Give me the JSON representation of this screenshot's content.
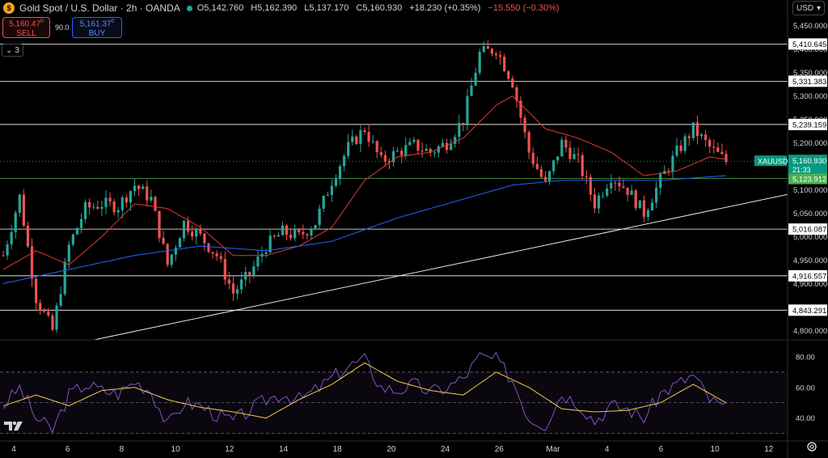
{
  "header": {
    "title": "Gold Spot / U.S. Dollar · 2h · OANDA",
    "open": "O5,142.760",
    "high": "H5,162.390",
    "low": "L5,137.170",
    "close": "C5,160.930",
    "change": "+18.230 (+0.35%)",
    "change2": "−15.550 (−0.30%)"
  },
  "trade": {
    "sell_price": "5,160.47",
    "sell_sup": "0",
    "sell_label": "SELL",
    "buy_price": "5,161.37",
    "buy_sup": "0",
    "buy_label": "BUY",
    "spread": "90.0"
  },
  "indicators_toggle": "3",
  "currency": "USD",
  "colors": {
    "up": "#26a69a",
    "down": "#ef5350",
    "ma_fast": "#e53935",
    "ma_slow": "#2962ff",
    "rsi": "#7e57c2",
    "rsi_ma": "#f7c948",
    "level": "#ffffff",
    "trend": "#ffffff",
    "last_price_bg": "#089981",
    "support_line": "#4caf50"
  },
  "chart_data": {
    "type": "candlestick",
    "symbol_label": "XAUUSD",
    "last_price": "5,160.930",
    "countdown": "21:33",
    "support_level_label": "5,123.912",
    "price_axis": {
      "range": [
        4780,
        5470
      ],
      "ticks": [
        "5,450.000",
        "5,400.000",
        "5,350.000",
        "5,300.000",
        "5,250.000",
        "5,200.000",
        "5,150.000",
        "5,100.000",
        "5,050.000",
        "5,000.000",
        "4,950.000",
        "4,900.000",
        "4,850.000",
        "4,800.000"
      ]
    },
    "levels": [
      {
        "value": 5410.645,
        "label": "5,410.645"
      },
      {
        "value": 5331.383,
        "label": "5,331.383"
      },
      {
        "value": 5239.159,
        "label": "5,239.159"
      },
      {
        "value": 5016.087,
        "label": "5,016.087"
      },
      {
        "value": 4916.557,
        "label": "4,916.557"
      },
      {
        "value": 4843.291,
        "label": "4,843.291"
      }
    ],
    "support_line": 5123.912,
    "trendline": {
      "from": [
        2.6,
        4780
      ],
      "to": [
        14.3,
        5090
      ]
    },
    "x_axis": {
      "range": [
        3.55,
        14.6
      ],
      "ticks": [
        {
          "pos": 4,
          "label": "4"
        },
        {
          "pos": 6,
          "label": "6"
        },
        {
          "pos": 8,
          "label": "8"
        },
        {
          "pos": 10,
          "label": "10"
        },
        {
          "pos": 12,
          "label": "12"
        },
        {
          "pos": 14,
          "label": "14"
        },
        {
          "pos": 16,
          "label": "18"
        },
        {
          "pos": 18,
          "label": "20"
        },
        {
          "pos": 20,
          "label": "24"
        },
        {
          "pos": 22,
          "label": "26"
        },
        {
          "pos": 24,
          "label": "Mar"
        },
        {
          "pos": 26,
          "label": "4"
        },
        {
          "pos": 28,
          "label": "6"
        },
        {
          "pos": 30,
          "label": "10"
        },
        {
          "pos": 32,
          "label": "12"
        },
        {
          "pos": 34,
          "label": "14"
        }
      ]
    },
    "price_path": [
      [
        0,
        4960
      ],
      [
        2,
        5085
      ],
      [
        4,
        4870
      ],
      [
        6,
        4800
      ],
      [
        8,
        4980
      ],
      [
        10,
        5060
      ],
      [
        12,
        5070
      ],
      [
        14,
        5065
      ],
      [
        16,
        5110
      ],
      [
        18,
        5080
      ],
      [
        20,
        4940
      ],
      [
        22,
        5030
      ],
      [
        24,
        5000
      ],
      [
        26,
        4960
      ],
      [
        28,
        4880
      ],
      [
        30,
        4920
      ],
      [
        32,
        4980
      ],
      [
        34,
        5010
      ],
      [
        36,
        5000
      ],
      [
        38,
        5030
      ],
      [
        40,
        5120
      ],
      [
        42,
        5190
      ],
      [
        44,
        5230
      ],
      [
        46,
        5160
      ],
      [
        48,
        5180
      ],
      [
        50,
        5195
      ],
      [
        52,
        5180
      ],
      [
        54,
        5200
      ],
      [
        56,
        5250
      ],
      [
        58,
        5390
      ],
      [
        60,
        5400
      ],
      [
        62,
        5330
      ],
      [
        64,
        5180
      ],
      [
        66,
        5110
      ],
      [
        68,
        5200
      ],
      [
        70,
        5160
      ],
      [
        72,
        5070
      ],
      [
        74,
        5130
      ],
      [
        76,
        5100
      ],
      [
        78,
        5050
      ],
      [
        80,
        5120
      ],
      [
        82,
        5180
      ],
      [
        84,
        5230
      ],
      [
        86,
        5190
      ],
      [
        88,
        5160
      ]
    ],
    "ma_fast_path": [
      [
        0,
        4930
      ],
      [
        4,
        4970
      ],
      [
        8,
        4940
      ],
      [
        12,
        5000
      ],
      [
        16,
        5070
      ],
      [
        20,
        5060
      ],
      [
        24,
        5020
      ],
      [
        28,
        4960
      ],
      [
        32,
        4960
      ],
      [
        36,
        4980
      ],
      [
        40,
        5020
      ],
      [
        44,
        5120
      ],
      [
        48,
        5170
      ],
      [
        52,
        5180
      ],
      [
        56,
        5210
      ],
      [
        60,
        5280
      ],
      [
        62,
        5300
      ],
      [
        66,
        5230
      ],
      [
        70,
        5210
      ],
      [
        74,
        5180
      ],
      [
        78,
        5130
      ],
      [
        82,
        5140
      ],
      [
        86,
        5170
      ],
      [
        88,
        5165
      ]
    ],
    "ma_slow_path": [
      [
        0,
        4900
      ],
      [
        8,
        4930
      ],
      [
        16,
        4960
      ],
      [
        24,
        4980
      ],
      [
        32,
        4970
      ],
      [
        40,
        4990
      ],
      [
        48,
        5040
      ],
      [
        56,
        5080
      ],
      [
        62,
        5110
      ],
      [
        68,
        5120
      ],
      [
        74,
        5120
      ],
      [
        80,
        5120
      ],
      [
        88,
        5130
      ]
    ],
    "rsi": {
      "range": [
        25,
        90
      ],
      "ticks": [
        "80.00",
        "60.00",
        "40.00"
      ],
      "bands": [
        70,
        50,
        30
      ],
      "rsi_path": [
        [
          0,
          48
        ],
        [
          2,
          60
        ],
        [
          4,
          40
        ],
        [
          6,
          32
        ],
        [
          8,
          55
        ],
        [
          10,
          62
        ],
        [
          12,
          58
        ],
        [
          14,
          56
        ],
        [
          16,
          64
        ],
        [
          18,
          58
        ],
        [
          20,
          35
        ],
        [
          22,
          50
        ],
        [
          24,
          48
        ],
        [
          26,
          42
        ],
        [
          28,
          38
        ],
        [
          30,
          45
        ],
        [
          32,
          52
        ],
        [
          34,
          56
        ],
        [
          36,
          52
        ],
        [
          38,
          58
        ],
        [
          40,
          66
        ],
        [
          42,
          74
        ],
        [
          44,
          78
        ],
        [
          46,
          60
        ],
        [
          48,
          58
        ],
        [
          50,
          62
        ],
        [
          52,
          57
        ],
        [
          54,
          60
        ],
        [
          56,
          66
        ],
        [
          58,
          80
        ],
        [
          60,
          78
        ],
        [
          62,
          65
        ],
        [
          64,
          40
        ],
        [
          66,
          36
        ],
        [
          68,
          56
        ],
        [
          70,
          50
        ],
        [
          72,
          38
        ],
        [
          74,
          48
        ],
        [
          76,
          46
        ],
        [
          78,
          40
        ],
        [
          80,
          56
        ],
        [
          82,
          62
        ],
        [
          84,
          68
        ],
        [
          86,
          52
        ],
        [
          88,
          46
        ]
      ],
      "rsi_ma_path": [
        [
          0,
          48
        ],
        [
          4,
          55
        ],
        [
          8,
          48
        ],
        [
          12,
          58
        ],
        [
          16,
          60
        ],
        [
          20,
          52
        ],
        [
          24,
          47
        ],
        [
          28,
          44
        ],
        [
          32,
          40
        ],
        [
          36,
          52
        ],
        [
          40,
          62
        ],
        [
          44,
          76
        ],
        [
          48,
          64
        ],
        [
          52,
          58
        ],
        [
          56,
          55
        ],
        [
          60,
          70
        ],
        [
          64,
          60
        ],
        [
          68,
          46
        ],
        [
          72,
          44
        ],
        [
          76,
          45
        ],
        [
          80,
          50
        ],
        [
          84,
          62
        ],
        [
          88,
          50
        ]
      ]
    }
  }
}
